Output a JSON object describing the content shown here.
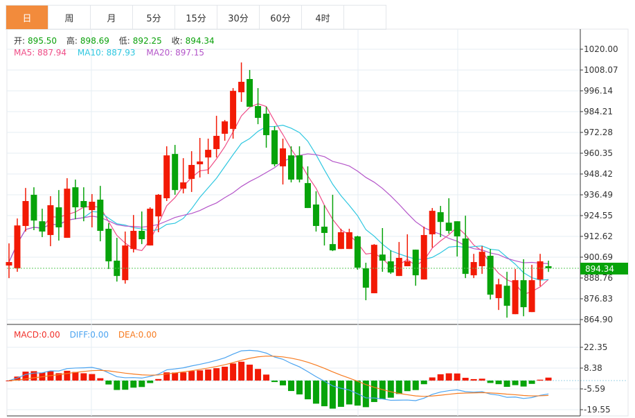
{
  "tabs": [
    {
      "label": "日",
      "active": true
    },
    {
      "label": "周"
    },
    {
      "label": "月"
    },
    {
      "label": "5分"
    },
    {
      "label": "15分"
    },
    {
      "label": "30分"
    },
    {
      "label": "60分"
    },
    {
      "label": "4时"
    },
    {
      "label": ""
    }
  ],
  "ohlc_legend": {
    "open_label": "开:",
    "open": "895.50",
    "high_label": "高:",
    "high": "898.69",
    "low_label": "低:",
    "low": "892.25",
    "close_label": "收:",
    "close": "894.34"
  },
  "ma_legend": {
    "ma5": "MA5: 887.94",
    "ma10": "MA10: 887.93",
    "ma20": "MA20: 897.15"
  },
  "macd_legend": {
    "macd": "MACD:0.00",
    "diff": "DIFF:0.00",
    "dea": "DEA:0.00"
  },
  "price_axis": [
    "1020.00",
    "1008.07",
    "996.14",
    "984.21",
    "972.28",
    "960.35",
    "948.42",
    "936.49",
    "924.55",
    "912.62",
    "900.69",
    "888.76",
    "876.83",
    "864.90"
  ],
  "macd_axis": [
    "22.35",
    "8.38",
    "-5.59",
    "-19.55"
  ],
  "current_price": "894.34",
  "colors": {
    "up": "#f21a05",
    "down": "#07a30a",
    "ma5": "#ef4c86",
    "ma10": "#2ec7e0",
    "ma20": "#b455c9",
    "diff": "#4aa3f0",
    "dea": "#f77b20",
    "accent": "#f28b3c"
  },
  "chart_data": {
    "type": "candlestick",
    "ylim": [
      864.9,
      1020.0
    ],
    "macd_ylim": [
      -19.55,
      22.35
    ],
    "candles": [
      [
        895.9,
        908.6,
        888.7,
        897.9
      ],
      [
        894.3,
        922.9,
        892.3,
        918.9
      ],
      [
        918.6,
        940.4,
        915.4,
        932.9
      ],
      [
        936.5,
        940.8,
        916.2,
        921.7
      ],
      [
        921.3,
        928.5,
        912.2,
        915.4
      ],
      [
        913.4,
        935.7,
        907.0,
        930.5
      ],
      [
        929.3,
        939.2,
        910.2,
        917.8
      ],
      [
        911.8,
        946.0,
        911.8,
        940.0
      ],
      [
        940.8,
        945.2,
        922.5,
        929.3
      ],
      [
        932.9,
        940.8,
        921.3,
        929.3
      ],
      [
        927.7,
        936.9,
        917.8,
        932.5
      ],
      [
        933.7,
        941.6,
        909.8,
        915.8
      ],
      [
        917.0,
        920.2,
        893.9,
        898.3
      ],
      [
        898.7,
        911.8,
        886.7,
        889.9
      ],
      [
        887.5,
        915.4,
        885.5,
        907.4
      ],
      [
        905.4,
        924.9,
        903.4,
        915.8
      ],
      [
        915.8,
        926.9,
        908.2,
        911.0
      ],
      [
        907.4,
        929.3,
        907.4,
        928.5
      ],
      [
        924.1,
        936.9,
        915.0,
        936.5
      ],
      [
        934.5,
        964.3,
        932.9,
        959.1
      ],
      [
        959.9,
        965.1,
        936.5,
        939.2
      ],
      [
        940.0,
        957.5,
        937.3,
        943.6
      ],
      [
        945.6,
        961.5,
        938.1,
        953.6
      ],
      [
        954.0,
        969.1,
        946.4,
        955.6
      ],
      [
        957.9,
        968.7,
        948.4,
        962.3
      ],
      [
        962.7,
        981.8,
        957.9,
        970.3
      ],
      [
        971.5,
        979.4,
        967.5,
        978.6
      ],
      [
        974.3,
        997.7,
        968.7,
        996.1
      ],
      [
        995.3,
        1012.4,
        989.8,
        1001.3
      ],
      [
        1002.9,
        1008.1,
        987.0,
        987.0
      ],
      [
        987.4,
        997.7,
        977.0,
        980.6
      ],
      [
        983.0,
        987.0,
        963.5,
        970.7
      ],
      [
        973.5,
        975.8,
        952.8,
        954.0
      ],
      [
        952.8,
        968.7,
        942.4,
        963.1
      ],
      [
        959.1,
        964.3,
        943.6,
        945.2
      ],
      [
        959.1,
        964.3,
        943.6,
        945.2
      ],
      [
        943.2,
        952.8,
        928.9,
        928.9
      ],
      [
        930.9,
        938.5,
        915.4,
        918.6
      ],
      [
        918.2,
        930.5,
        907.4,
        914.6
      ],
      [
        908.2,
        936.5,
        904.2,
        904.6
      ],
      [
        905.4,
        917.0,
        905.4,
        915.0
      ],
      [
        905.4,
        917.0,
        905.4,
        915.0
      ],
      [
        912.6,
        913.0,
        893.5,
        894.7
      ],
      [
        894.3,
        897.5,
        876.0,
        883.2
      ],
      [
        880.0,
        908.2,
        880.0,
        907.8
      ],
      [
        902.2,
        917.4,
        892.3,
        898.7
      ],
      [
        898.3,
        904.6,
        891.1,
        891.9
      ],
      [
        889.9,
        909.4,
        889.9,
        900.3
      ],
      [
        895.5,
        913.8,
        895.5,
        898.3
      ],
      [
        905.0,
        905.0,
        884.3,
        890.3
      ],
      [
        887.9,
        918.2,
        887.9,
        913.4
      ],
      [
        913.8,
        928.9,
        906.2,
        927.3
      ],
      [
        926.5,
        930.1,
        912.2,
        920.9
      ],
      [
        920.5,
        934.5,
        914.2,
        915.8
      ],
      [
        921.3,
        921.3,
        901.1,
        912.6
      ],
      [
        911.4,
        924.5,
        888.7,
        891.1
      ],
      [
        890.3,
        902.6,
        888.7,
        897.9
      ],
      [
        895.5,
        907.0,
        891.1,
        903.8
      ],
      [
        901.5,
        905.4,
        876.4,
        879.2
      ],
      [
        877.2,
        888.3,
        870.4,
        885.1
      ],
      [
        884.3,
        892.3,
        866.0,
        872.8
      ],
      [
        868.0,
        893.9,
        868.0,
        887.5
      ],
      [
        887.5,
        899.5,
        866.8,
        872.0
      ],
      [
        869.2,
        896.3,
        869.2,
        887.5
      ],
      [
        887.9,
        902.6,
        884.0,
        898.3
      ],
      [
        895.5,
        898.69,
        892.25,
        894.34
      ]
    ]
  }
}
